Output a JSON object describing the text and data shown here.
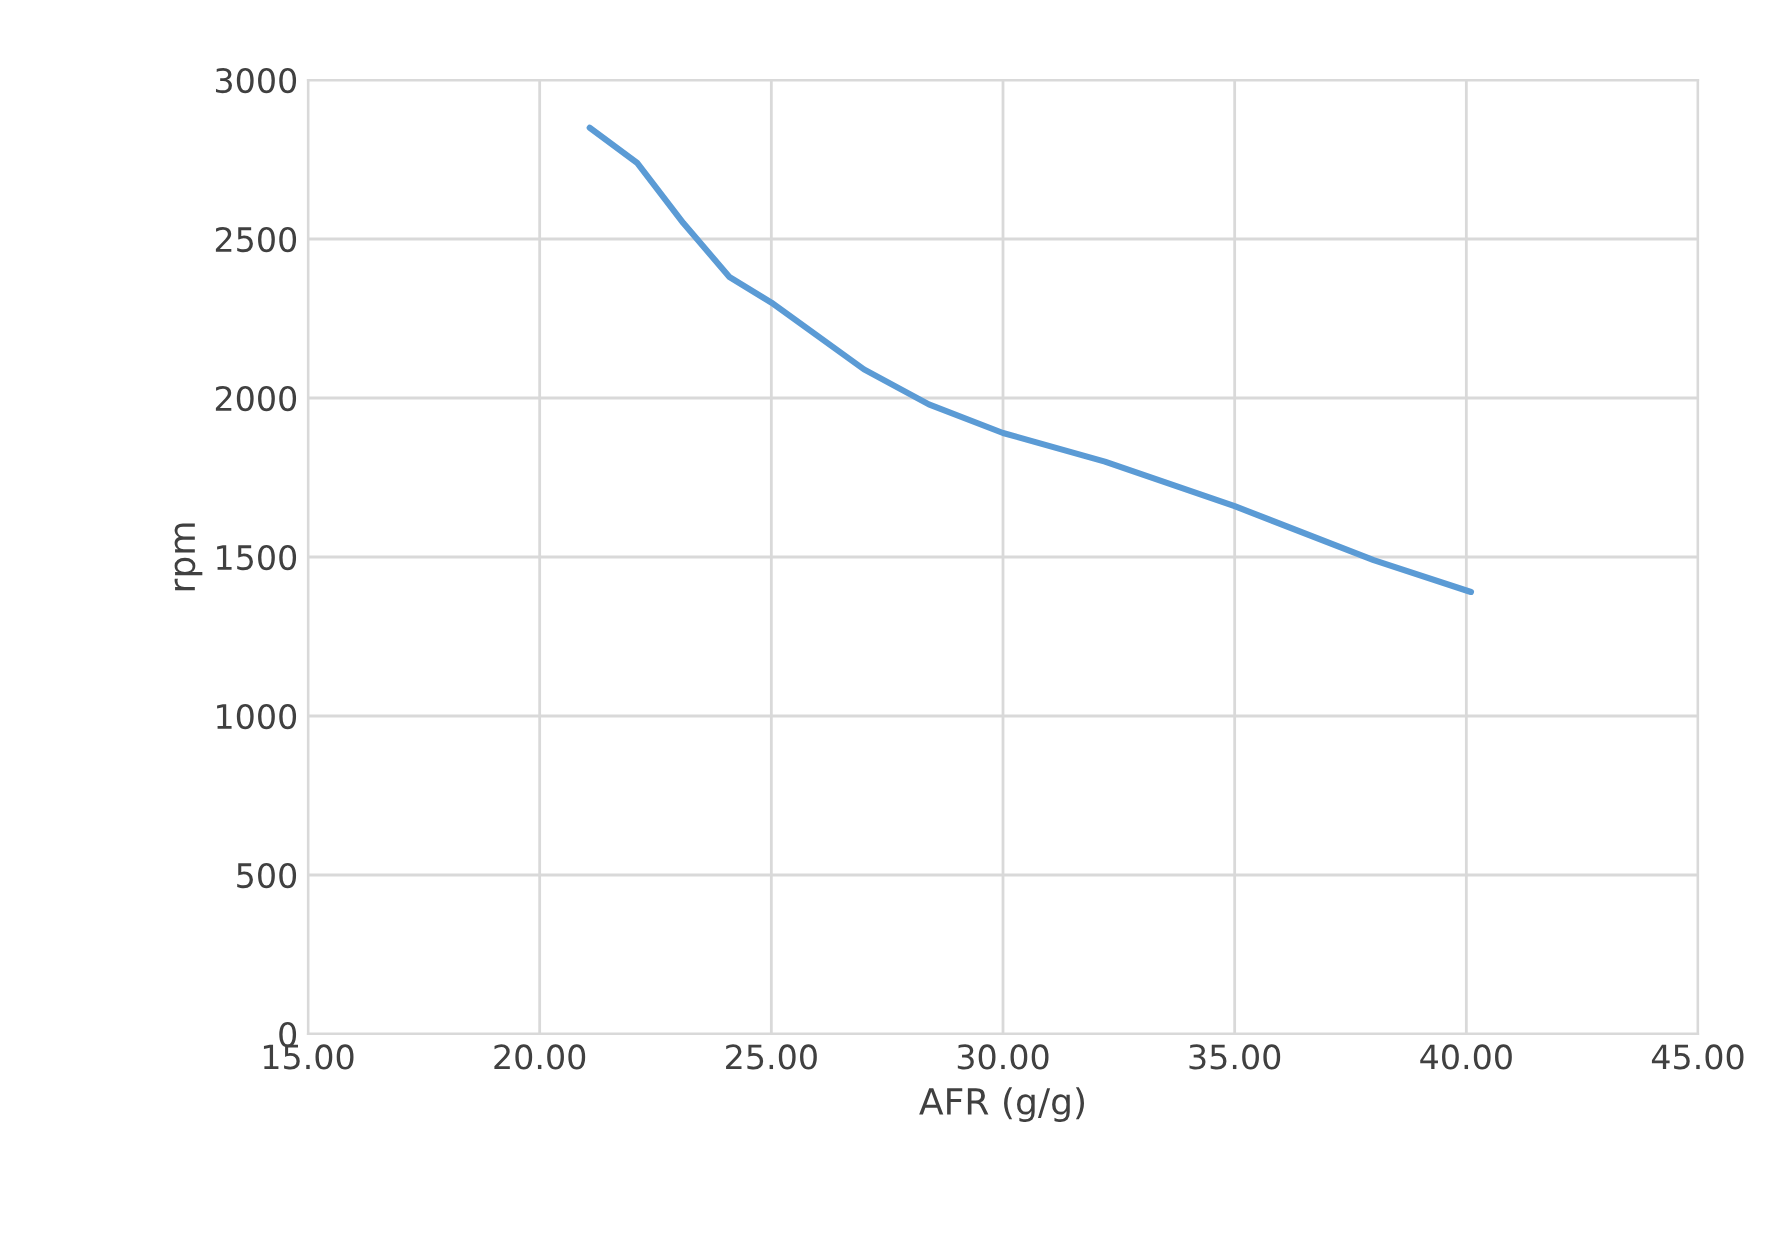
{
  "chart_data": {
    "type": "line",
    "xlabel": "AFR (g/g)",
    "ylabel": "rpm",
    "series": [
      {
        "color": "#5b9bd5",
        "x": [
          21.08,
          22.1,
          23.1,
          24.1,
          25.0,
          27.0,
          28.4,
          30.0,
          32.2,
          35.0,
          38.0,
          40.1
        ],
        "values": [
          2850,
          2740,
          2550,
          2380,
          2300,
          2090,
          1980,
          1890,
          1800,
          1660,
          1490,
          1390
        ]
      }
    ],
    "xlim": [
      15,
      45
    ],
    "xticks": [
      {
        "value": 15,
        "label": "15.00"
      },
      {
        "value": 20,
        "label": "20.00"
      },
      {
        "value": 25,
        "label": "25.00"
      },
      {
        "value": 30,
        "label": "30.00"
      },
      {
        "value": 35,
        "label": "35.00"
      },
      {
        "value": 40,
        "label": "40.00"
      },
      {
        "value": 45,
        "label": "45.00"
      }
    ],
    "ylim": [
      0,
      3000
    ],
    "yticks": [
      0,
      500,
      1000,
      1500,
      2000,
      2500,
      3000
    ],
    "grid": true,
    "marker": "none",
    "line_style": "solid"
  }
}
